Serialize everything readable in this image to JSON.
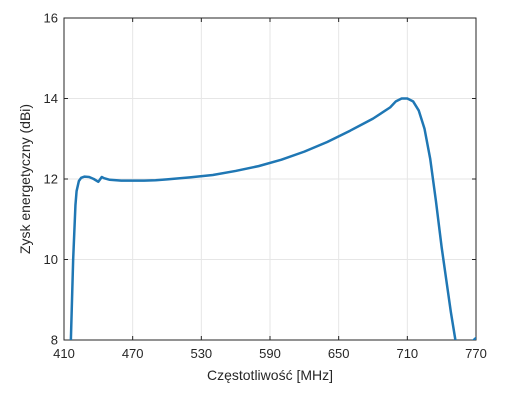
{
  "chart_data": {
    "type": "line",
    "title": "",
    "xlabel": "Częstotliwość [MHz]",
    "ylabel": "Zysk energetyczny (dBi)",
    "xlim": [
      410,
      770
    ],
    "ylim": [
      8,
      16
    ],
    "xticks": [
      410,
      470,
      530,
      590,
      650,
      710,
      770
    ],
    "yticks": [
      8,
      10,
      12,
      14,
      16
    ],
    "grid": true,
    "colors": {
      "line": "#1f77b4",
      "grid": "#e6e6e6",
      "axis": "#262626"
    },
    "series": [
      {
        "x": [
          416,
          418,
          420,
          421,
          423,
          425,
          428,
          432,
          436,
          440,
          443,
          445,
          450,
          460,
          470,
          480,
          490,
          500,
          520,
          540,
          560,
          580,
          600,
          620,
          640,
          660,
          680,
          695,
          700,
          705,
          710,
          715,
          720,
          725,
          730,
          735,
          740,
          744,
          748,
          752,
          756,
          770
        ],
        "y": [
          8.0,
          10.0,
          11.35,
          11.7,
          11.95,
          12.03,
          12.06,
          12.05,
          12.0,
          11.93,
          12.05,
          12.02,
          11.98,
          11.96,
          11.96,
          11.96,
          11.97,
          11.99,
          12.04,
          12.1,
          12.2,
          12.32,
          12.48,
          12.68,
          12.92,
          13.2,
          13.5,
          13.78,
          13.93,
          14.0,
          14.0,
          13.93,
          13.7,
          13.25,
          12.5,
          11.45,
          10.3,
          9.5,
          8.7,
          8.0,
          7.7,
          8.05
        ]
      }
    ]
  }
}
